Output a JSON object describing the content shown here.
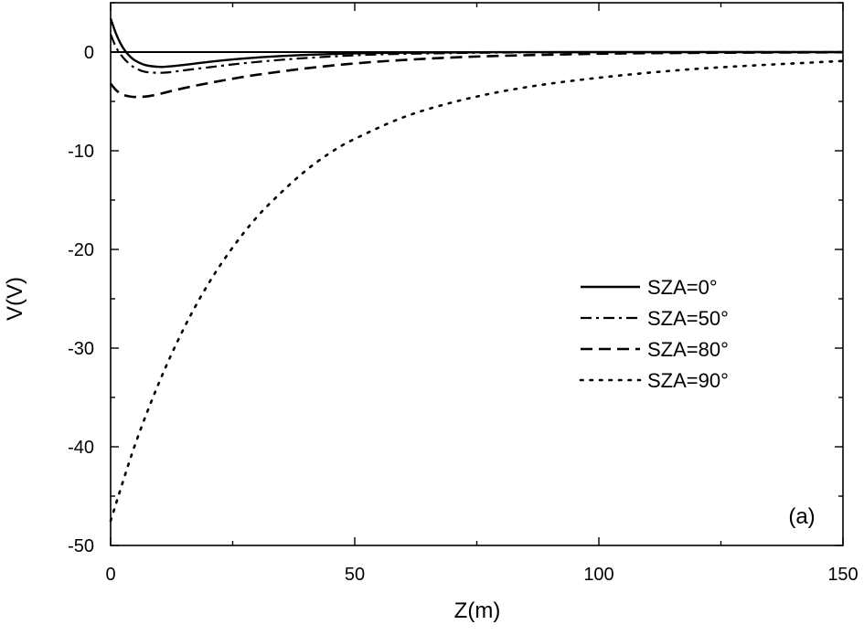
{
  "chart_data": {
    "type": "line",
    "title": "",
    "xlabel": "Z(m)",
    "ylabel": "V(V)",
    "xlim": [
      0,
      150
    ],
    "ylim": [
      -50,
      5
    ],
    "x_ticks": [
      0,
      50,
      100,
      150
    ],
    "x_tick_labels": [
      "0",
      "50",
      "100",
      "150"
    ],
    "y_ticks": [
      0,
      -10,
      -20,
      -30,
      -40,
      -50
    ],
    "y_tick_labels": [
      "0",
      "-10",
      "-20",
      "-30",
      "-40",
      "-50"
    ],
    "grid": false,
    "legend_position": "right",
    "annotation": "(a)",
    "reference_line": 0,
    "series": [
      {
        "name": "SZA=0°",
        "style": "solid",
        "x": [
          0,
          1,
          2,
          3,
          4,
          5,
          7,
          10,
          12,
          15,
          20,
          25,
          30,
          35,
          40,
          50,
          60,
          80,
          100,
          150
        ],
        "y": [
          3.4,
          2.0,
          0.9,
          0.1,
          -0.45,
          -0.85,
          -1.3,
          -1.5,
          -1.45,
          -1.3,
          -1.0,
          -0.75,
          -0.55,
          -0.4,
          -0.28,
          -0.13,
          -0.06,
          -0.01,
          0.0,
          0.0
        ]
      },
      {
        "name": "SZA=50°",
        "style": "dashdot",
        "x": [
          0,
          1,
          2,
          3,
          4,
          5,
          7,
          10,
          12,
          15,
          20,
          25,
          30,
          35,
          40,
          50,
          60,
          80,
          100,
          150
        ],
        "y": [
          1.8,
          0.6,
          -0.2,
          -0.8,
          -1.25,
          -1.6,
          -2.0,
          -2.1,
          -2.05,
          -1.85,
          -1.55,
          -1.25,
          -1.0,
          -0.78,
          -0.6,
          -0.33,
          -0.18,
          -0.05,
          -0.01,
          0.0
        ]
      },
      {
        "name": "SZA=80°",
        "style": "dashed",
        "x": [
          0,
          1,
          2,
          3,
          4,
          5,
          6,
          8,
          10,
          12,
          15,
          20,
          25,
          30,
          40,
          50,
          60,
          70,
          80,
          100,
          120,
          150
        ],
        "y": [
          -3.2,
          -3.8,
          -4.2,
          -4.4,
          -4.5,
          -4.55,
          -4.55,
          -4.45,
          -4.25,
          -4.0,
          -3.65,
          -3.15,
          -2.7,
          -2.3,
          -1.65,
          -1.15,
          -0.8,
          -0.55,
          -0.38,
          -0.17,
          -0.08,
          -0.02
        ]
      },
      {
        "name": "SZA=90°",
        "style": "dotted",
        "x": [
          0,
          5,
          10,
          15,
          20,
          25,
          30,
          35,
          40,
          45,
          50,
          60,
          70,
          80,
          90,
          100,
          110,
          120,
          130,
          140,
          150
        ],
        "y": [
          -47.5,
          -39.8,
          -33.4,
          -28.0,
          -23.5,
          -19.8,
          -16.7,
          -14.2,
          -12.0,
          -10.2,
          -8.8,
          -6.6,
          -5.1,
          -4.0,
          -3.2,
          -2.6,
          -2.1,
          -1.7,
          -1.4,
          -1.15,
          -0.9
        ]
      }
    ]
  }
}
